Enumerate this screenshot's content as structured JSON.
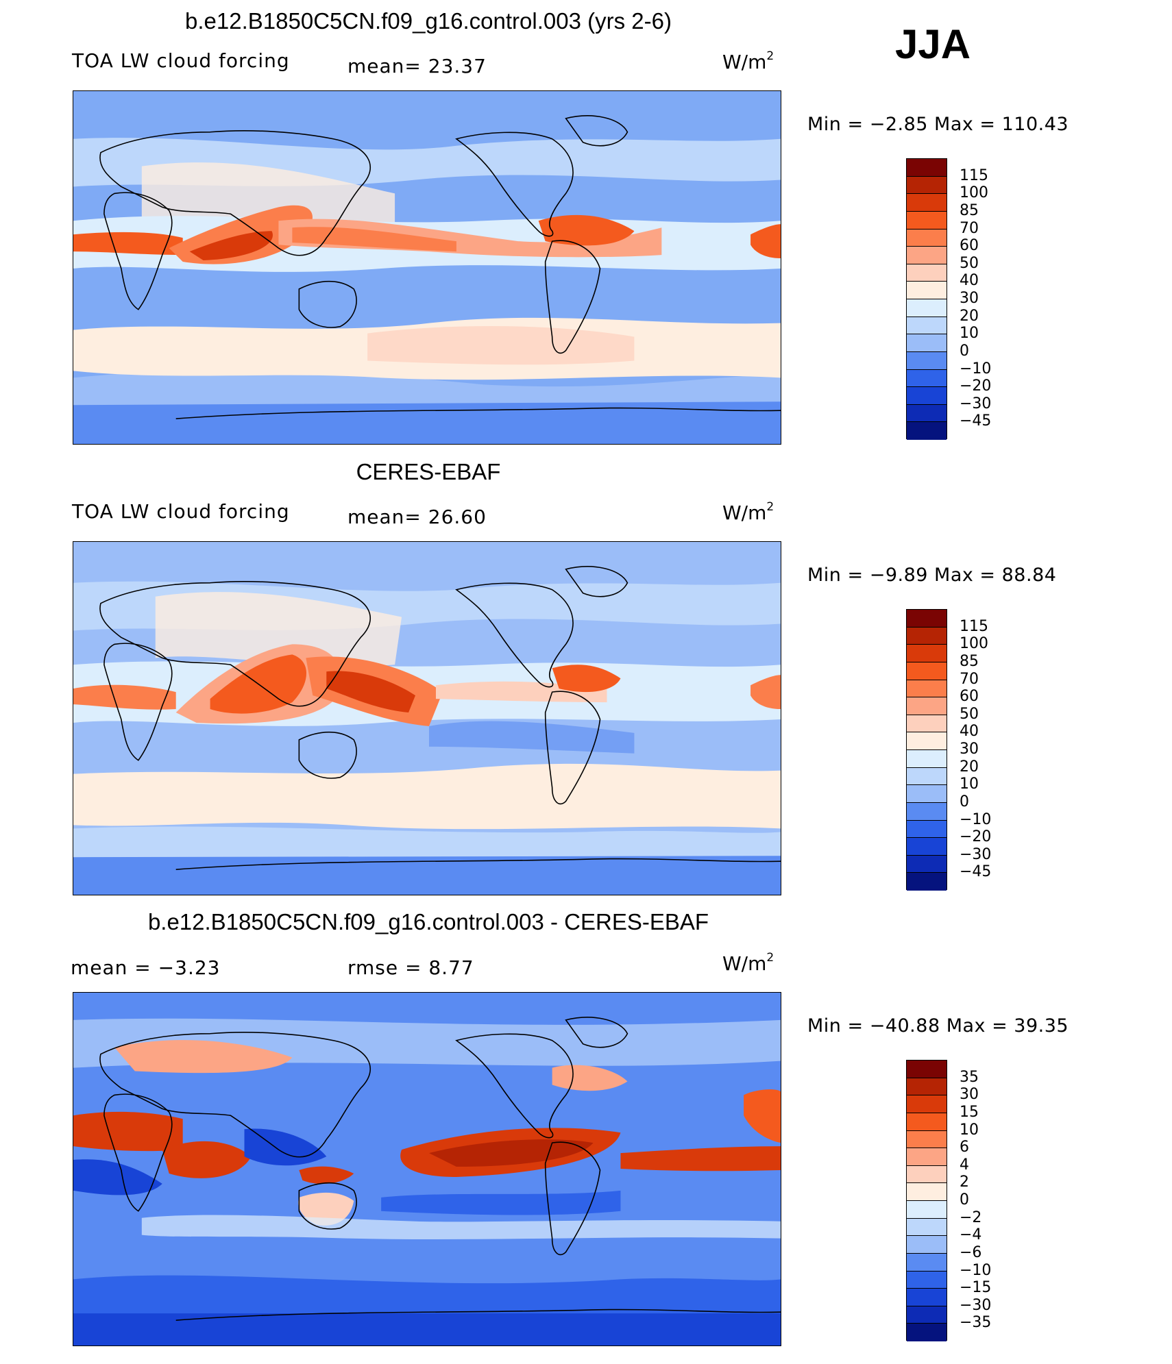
{
  "season": "JJA",
  "colors": {
    "land_outline": "#000000",
    "ocean_background": "#7faaf5"
  },
  "panels": [
    {
      "id": "model",
      "title": "b.e12.B1850C5CN.f09_g16.control.003 (yrs 2-6)",
      "variable": "TOA LW cloud forcing",
      "stat_text": "mean=   23.37",
      "units_base": "W/m",
      "units_exp": "2",
      "minmax": "Min =   −2.85 Max  =  110.43",
      "colorbar": {
        "colors": [
          "#7a0403",
          "#b52404",
          "#d93a0a",
          "#f45a1e",
          "#fb7e4b",
          "#fca585",
          "#fdd0bd",
          "#feeee0",
          "#dceefd",
          "#bdd7fb",
          "#9bbdf8",
          "#5a8bf2",
          "#2f63e9",
          "#1844d6",
          "#0d2bb5",
          "#05137e"
        ],
        "labels": [
          "115",
          "100",
          "85",
          "70",
          "60",
          "50",
          "40",
          "30",
          "20",
          "10",
          "0",
          "−10",
          "−20",
          "−30",
          "−45"
        ]
      }
    },
    {
      "id": "obs",
      "title": "CERES-EBAF",
      "variable": "TOA LW cloud forcing",
      "stat_text": "mean=   26.60",
      "units_base": "W/m",
      "units_exp": "2",
      "minmax": "Min =   −9.89 Max  =   88.84",
      "colorbar": {
        "colors": [
          "#7a0403",
          "#b52404",
          "#d93a0a",
          "#f45a1e",
          "#fb7e4b",
          "#fca585",
          "#fdd0bd",
          "#feeee0",
          "#dceefd",
          "#bdd7fb",
          "#9bbdf8",
          "#5a8bf2",
          "#2f63e9",
          "#1844d6",
          "#0d2bb5",
          "#05137e"
        ],
        "labels": [
          "115",
          "100",
          "85",
          "70",
          "60",
          "50",
          "40",
          "30",
          "20",
          "10",
          "0",
          "−10",
          "−20",
          "−30",
          "−45"
        ]
      }
    },
    {
      "id": "diff",
      "title": "b.e12.B1850C5CN.f09_g16.control.003 - CERES-EBAF",
      "mean_text": "mean =    −3.23",
      "rmse_text": "rmse =     8.77",
      "units_base": "W/m",
      "units_exp": "2",
      "minmax": "Min = −40.88 Max  =   39.35",
      "colorbar": {
        "colors": [
          "#7a0403",
          "#b52404",
          "#d93a0a",
          "#f45a1e",
          "#fb7e4b",
          "#fca585",
          "#fdd0bd",
          "#feeee0",
          "#dceefd",
          "#bdd7fb",
          "#9bbdf8",
          "#5a8bf2",
          "#2f63e9",
          "#1844d6",
          "#0d2bb5",
          "#05137e"
        ],
        "labels": [
          "35",
          "30",
          "15",
          "10",
          "6",
          "4",
          "2",
          "0",
          "−2",
          "−4",
          "−6",
          "−10",
          "−15",
          "−30",
          "−35"
        ]
      }
    }
  ]
}
